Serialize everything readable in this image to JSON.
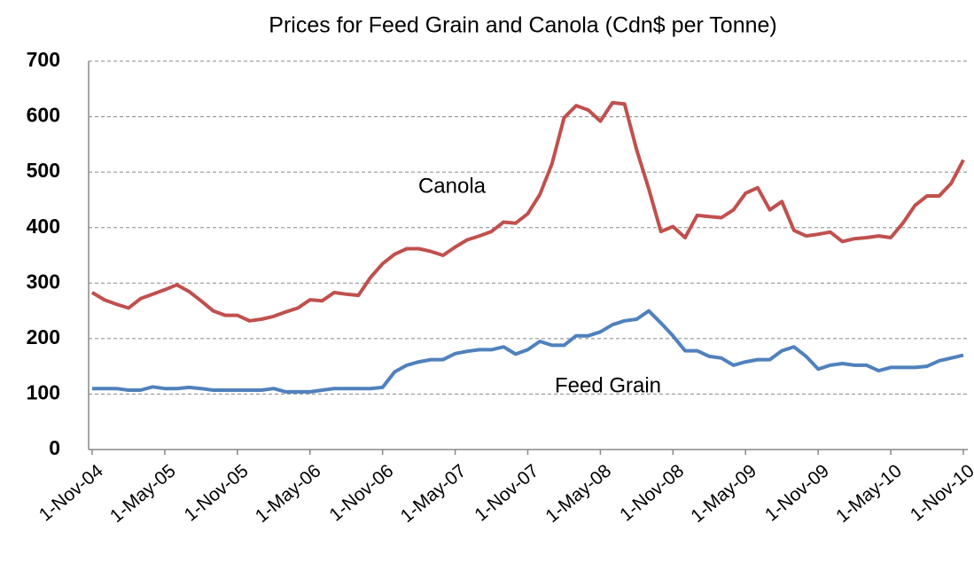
{
  "chart_data": {
    "type": "line",
    "title": "Prices for Feed Grain and Canola (Cdn$ per Tonne)",
    "categories": [
      "1-Nov-04",
      null,
      null,
      null,
      null,
      null,
      "1-May-05",
      null,
      null,
      null,
      null,
      null,
      "1-Nov-05",
      null,
      null,
      null,
      null,
      null,
      "1-May-06",
      null,
      null,
      null,
      null,
      null,
      "1-Nov-06",
      null,
      null,
      null,
      null,
      null,
      "1-May-07",
      null,
      null,
      null,
      null,
      null,
      "1-Nov-07",
      null,
      null,
      null,
      null,
      null,
      "1-May-08",
      null,
      null,
      null,
      null,
      null,
      "1-Nov-08",
      null,
      null,
      null,
      null,
      null,
      "1-May-09",
      null,
      null,
      null,
      null,
      null,
      "1-Nov-09",
      null,
      null,
      null,
      null,
      null,
      "1-May-10",
      null,
      null,
      null,
      null,
      null,
      "1-Nov-10"
    ],
    "series": [
      {
        "name": "Canola",
        "color": "#c0504d",
        "values": [
          283,
          270,
          262,
          255,
          272,
          280,
          288,
          297,
          285,
          268,
          250,
          242,
          242,
          232,
          235,
          240,
          248,
          255,
          270,
          268,
          283,
          280,
          278,
          310,
          335,
          352,
          362,
          362,
          357,
          350,
          365,
          378,
          385,
          393,
          410,
          408,
          425,
          460,
          515,
          598,
          620,
          612,
          592,
          625,
          623,
          540,
          470,
          393,
          402,
          382,
          422,
          420,
          418,
          432,
          462,
          472,
          432,
          447,
          395,
          385,
          388,
          392,
          375,
          380,
          382,
          385,
          382,
          408,
          440,
          457,
          457,
          480,
          522
        ]
      },
      {
        "name": "Feed Grain",
        "color": "#4f81bd",
        "values": [
          110,
          110,
          110,
          107,
          107,
          113,
          110,
          110,
          112,
          110,
          107,
          107,
          107,
          107,
          107,
          110,
          104,
          104,
          104,
          107,
          110,
          110,
          110,
          110,
          112,
          140,
          152,
          158,
          162,
          162,
          173,
          177,
          180,
          180,
          185,
          172,
          180,
          195,
          188,
          188,
          205,
          205,
          212,
          225,
          232,
          235,
          250,
          228,
          205,
          178,
          178,
          168,
          165,
          152,
          158,
          162,
          162,
          178,
          185,
          168,
          145,
          152,
          155,
          152,
          152,
          142,
          148,
          148,
          148,
          150,
          160,
          165,
          170
        ]
      }
    ],
    "ylim": [
      0,
      700
    ],
    "yticks": [
      0,
      100,
      200,
      300,
      400,
      500,
      600,
      700
    ],
    "grid": true
  }
}
